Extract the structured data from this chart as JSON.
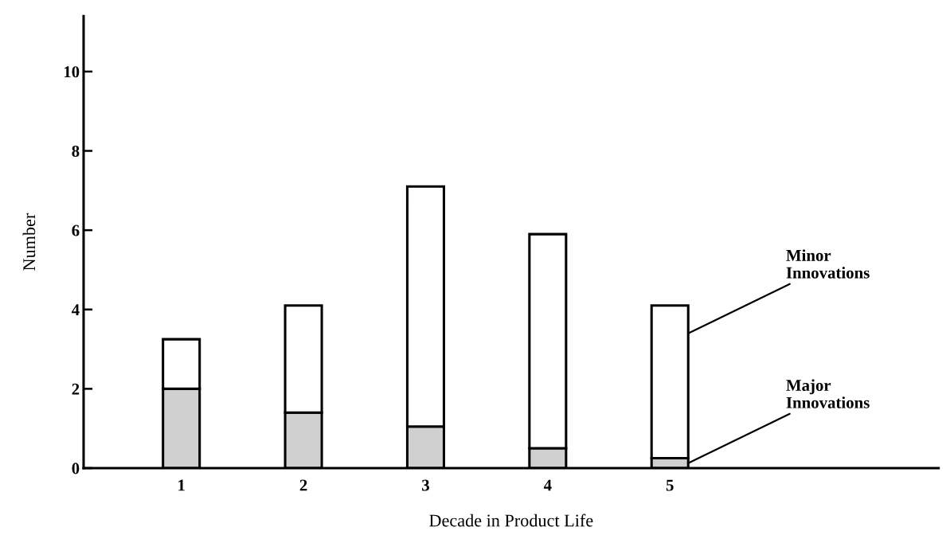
{
  "chart_data": {
    "type": "bar",
    "stacked": true,
    "xlabel": "Decade in Product Life",
    "ylabel": "Number",
    "categories": [
      "1",
      "2",
      "3",
      "4",
      "5"
    ],
    "series": [
      {
        "name": "Major Innovations",
        "color": "#d0d0d0",
        "values": [
          2.0,
          1.4,
          1.05,
          0.5,
          0.25
        ]
      },
      {
        "name": "Minor Innovations",
        "color": "#ffffff",
        "values": [
          1.25,
          2.7,
          6.05,
          5.4,
          3.85
        ]
      }
    ],
    "ylim": [
      0,
      11.4
    ],
    "yticks": [
      0,
      2,
      4,
      6,
      8,
      10
    ],
    "grid": false,
    "legend": false
  }
}
